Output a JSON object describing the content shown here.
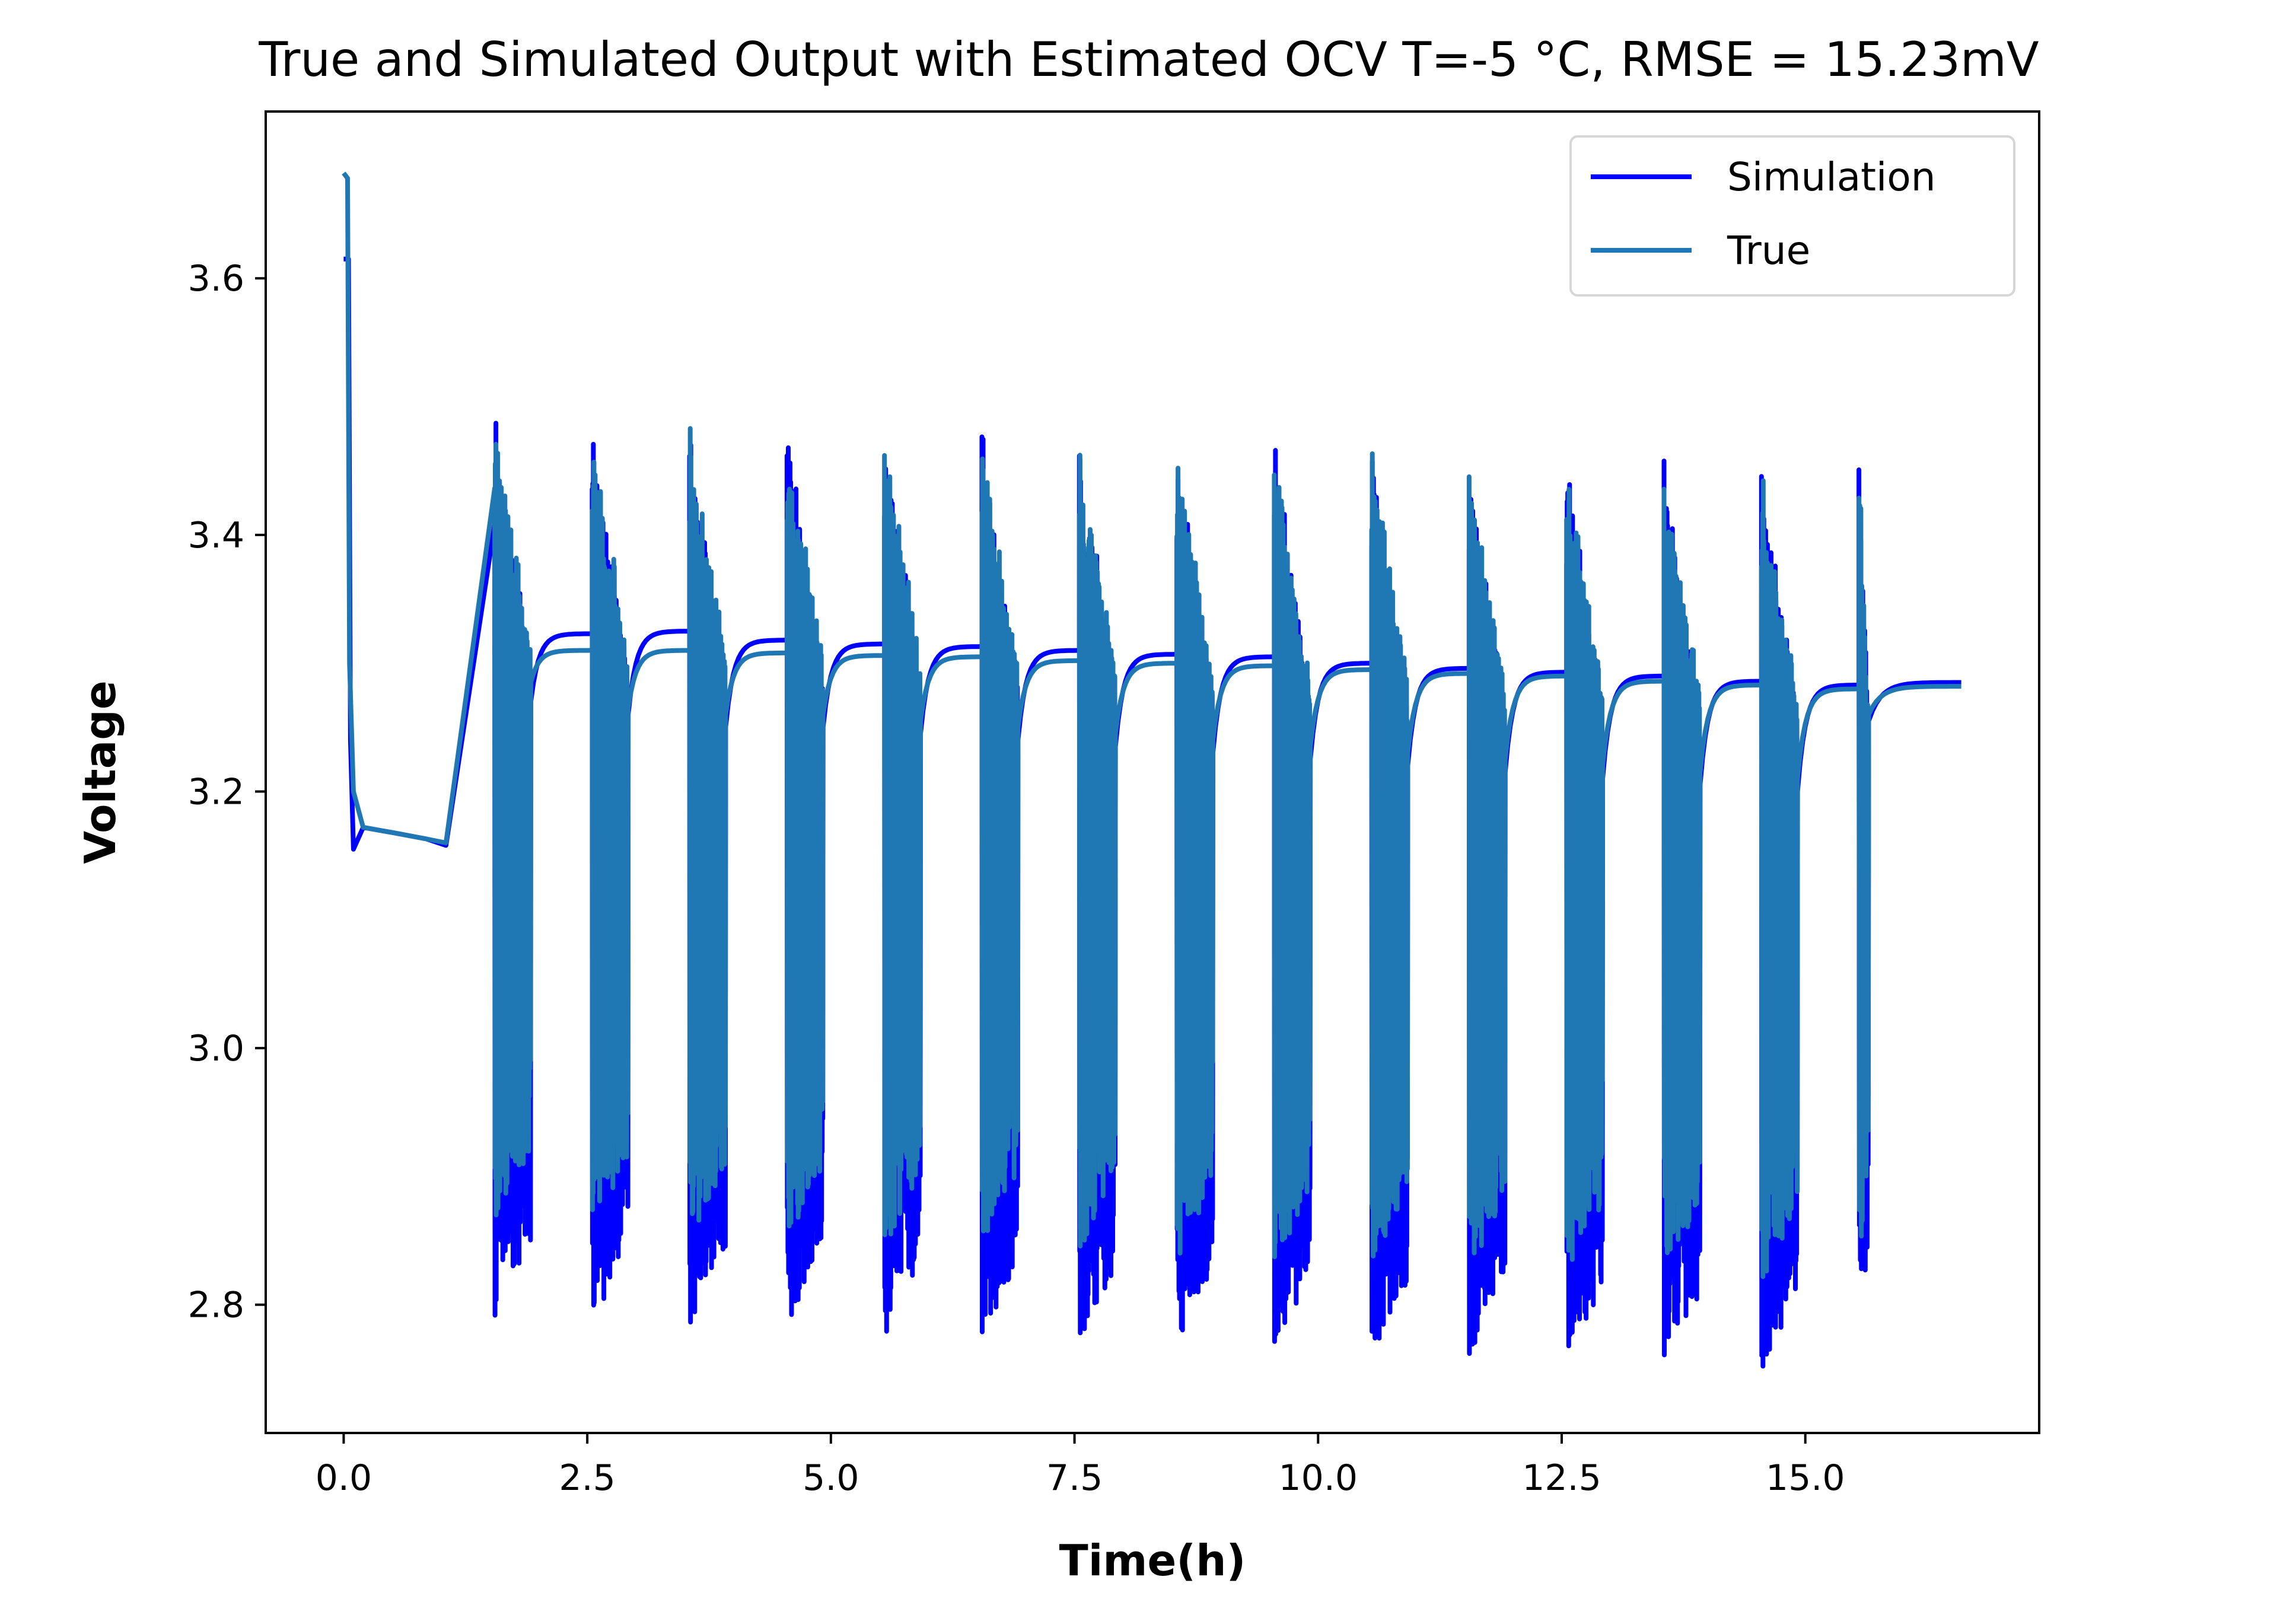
{
  "chart_data": {
    "type": "line",
    "title": "True and Simulated Output with Estimated OCV T=-5 °C, RMSE = 15.23mV",
    "xlabel": "Time(h)",
    "ylabel": "Voltage",
    "xlim": [
      -0.8,
      17.4
    ],
    "ylim": [
      2.7,
      3.73
    ],
    "xticks": [
      0.0,
      2.5,
      5.0,
      7.5,
      10.0,
      12.5,
      15.0
    ],
    "xtick_labels": [
      "0.0",
      "2.5",
      "5.0",
      "7.5",
      "10.0",
      "12.5",
      "15.0"
    ],
    "yticks": [
      2.8,
      3.0,
      3.2,
      3.4,
      3.6
    ],
    "ytick_labels": [
      "2.8",
      "3.0",
      "3.2",
      "3.4",
      "3.6"
    ],
    "grid": false,
    "legend": "top-right",
    "colors": {
      "simulation": "#0000ff",
      "true": "#1f77b4"
    },
    "series": [
      {
        "name": "Simulation",
        "color": "#0000ff",
        "initial": [
          [
            0.0,
            3.615
          ],
          [
            0.05,
            3.615
          ],
          [
            0.07,
            3.24
          ],
          [
            0.1,
            3.155
          ],
          [
            0.2,
            3.172
          ],
          [
            0.5,
            3.168
          ],
          [
            0.85,
            3.163
          ],
          [
            1.05,
            3.158
          ]
        ],
        "pulse_start": [
          1.55,
          2.55,
          3.55,
          4.55,
          5.55,
          6.55,
          7.55,
          8.55,
          9.55,
          10.55,
          11.55,
          12.55,
          13.55,
          14.55,
          15.55
        ],
        "peak": [
          3.495,
          3.495,
          3.49,
          3.488,
          3.486,
          3.482,
          3.479,
          3.476,
          3.472,
          3.468,
          3.465,
          3.462,
          3.46,
          3.457,
          3.455
        ],
        "low": [
          2.79,
          2.785,
          2.785,
          2.78,
          2.775,
          2.775,
          2.77,
          2.77,
          2.765,
          2.76,
          2.76,
          2.755,
          2.75,
          2.75,
          2.79
        ],
        "rest_start": [
          3.27,
          3.26,
          3.25,
          3.25,
          3.245,
          3.24,
          3.235,
          3.23,
          3.225,
          3.22,
          3.215,
          3.21,
          3.205,
          3.2,
          3.255
        ],
        "rest_end": [
          3.323,
          3.325,
          3.318,
          3.315,
          3.313,
          3.31,
          3.307,
          3.305,
          3.3,
          3.296,
          3.293,
          3.29,
          3.286,
          3.283,
          3.285
        ]
      },
      {
        "name": "True",
        "color": "#1f77b4",
        "initial": [
          [
            0.0,
            3.682
          ],
          [
            0.04,
            3.678
          ],
          [
            0.06,
            3.3
          ],
          [
            0.1,
            3.2
          ],
          [
            0.2,
            3.172
          ],
          [
            0.5,
            3.168
          ],
          [
            0.85,
            3.163
          ],
          [
            1.05,
            3.16
          ]
        ],
        "pulse_start": [
          1.55,
          2.55,
          3.55,
          4.55,
          5.55,
          6.55,
          7.55,
          8.55,
          9.55,
          10.55,
          11.55,
          12.55,
          13.55,
          14.55,
          15.55
        ],
        "peak": [
          3.49,
          3.49,
          3.485,
          3.483,
          3.481,
          3.478,
          3.475,
          3.472,
          3.468,
          3.465,
          3.462,
          3.46,
          3.456,
          3.453,
          3.45
        ],
        "low": [
          2.86,
          2.855,
          2.85,
          2.85,
          2.845,
          2.845,
          2.84,
          2.835,
          2.83,
          2.83,
          2.825,
          2.82,
          2.82,
          2.815,
          2.81
        ],
        "rest_start": [
          3.285,
          3.265,
          3.26,
          3.26,
          3.255,
          3.25,
          3.245,
          3.24,
          3.235,
          3.23,
          3.225,
          3.22,
          3.215,
          3.21,
          3.26
        ],
        "rest_end": [
          3.31,
          3.31,
          3.308,
          3.306,
          3.305,
          3.302,
          3.3,
          3.298,
          3.295,
          3.292,
          3.29,
          3.286,
          3.283,
          3.28,
          3.282
        ]
      }
    ]
  }
}
